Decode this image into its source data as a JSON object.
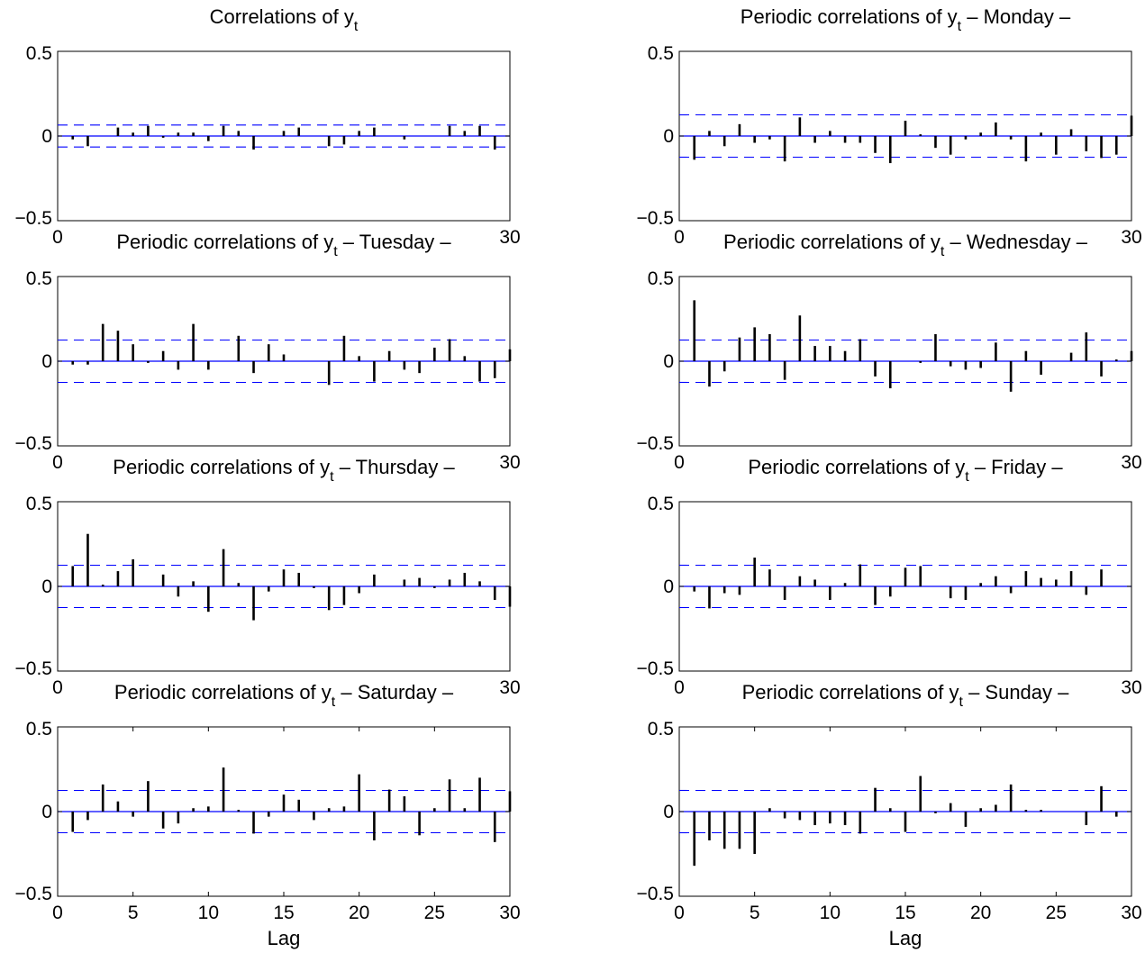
{
  "chart_data": [
    {
      "type": "bar",
      "title": "Correlations of y",
      "title_sub": "t",
      "title_suffix": "",
      "xlabel": "",
      "ylabel": "",
      "xlim": [
        0,
        30
      ],
      "ylim": [
        -0.5,
        0.5
      ],
      "xticks": [
        0,
        30
      ],
      "xtick_labels": [
        "0",
        "30"
      ],
      "yticks": [
        -0.5,
        0,
        0.5
      ],
      "ytick_labels": [
        "−0.5",
        "0",
        "0.5"
      ],
      "confidence_band": 0.065,
      "lags": [
        1,
        2,
        3,
        4,
        5,
        6,
        7,
        8,
        9,
        10,
        11,
        12,
        13,
        14,
        15,
        16,
        17,
        18,
        19,
        20,
        21,
        22,
        23,
        24,
        25,
        26,
        27,
        28,
        29,
        30
      ],
      "values": [
        -0.02,
        -0.06,
        0.0,
        0.05,
        0.02,
        0.06,
        -0.01,
        0.02,
        0.02,
        -0.03,
        0.06,
        0.03,
        -0.08,
        0.0,
        0.03,
        0.05,
        0.0,
        -0.06,
        -0.05,
        0.03,
        0.05,
        0.0,
        -0.02,
        0.0,
        0.0,
        0.06,
        0.03,
        0.06,
        -0.08,
        0.0
      ],
      "grid": false
    },
    {
      "type": "bar",
      "title": "Periodic correlations of y",
      "title_sub": "t",
      "title_suffix": " – Monday –",
      "xlabel": "",
      "ylabel": "",
      "xlim": [
        0,
        30
      ],
      "ylim": [
        -0.5,
        0.5
      ],
      "xticks": [
        0,
        30
      ],
      "xtick_labels": [
        "0",
        "30"
      ],
      "yticks": [
        -0.5,
        0,
        0.5
      ],
      "ytick_labels": [
        "−0.5",
        "0",
        "0.5"
      ],
      "confidence_band": 0.125,
      "lags": [
        1,
        2,
        3,
        4,
        5,
        6,
        7,
        8,
        9,
        10,
        11,
        12,
        13,
        14,
        15,
        16,
        17,
        18,
        19,
        20,
        21,
        22,
        23,
        24,
        25,
        26,
        27,
        28,
        29,
        30
      ],
      "values": [
        -0.14,
        0.03,
        -0.06,
        0.07,
        -0.04,
        -0.02,
        -0.15,
        0.11,
        -0.04,
        0.03,
        -0.04,
        -0.04,
        -0.1,
        -0.16,
        0.09,
        0.01,
        -0.07,
        -0.11,
        -0.02,
        0.02,
        0.08,
        -0.02,
        -0.15,
        0.02,
        -0.11,
        0.04,
        -0.09,
        -0.13,
        -0.11,
        0.12
      ],
      "grid": false
    },
    {
      "type": "bar",
      "title": "Periodic correlations of y",
      "title_sub": "t",
      "title_suffix": " – Tuesday –",
      "xlabel": "",
      "ylabel": "",
      "xlim": [
        0,
        30
      ],
      "ylim": [
        -0.5,
        0.5
      ],
      "xticks": [
        0,
        30
      ],
      "xtick_labels": [
        "0",
        "30"
      ],
      "yticks": [
        -0.5,
        0,
        0.5
      ],
      "ytick_labels": [
        "−0.5",
        "0",
        "0.5"
      ],
      "confidence_band": 0.125,
      "lags": [
        1,
        2,
        3,
        4,
        5,
        6,
        7,
        8,
        9,
        10,
        11,
        12,
        13,
        14,
        15,
        16,
        17,
        18,
        19,
        20,
        21,
        22,
        23,
        24,
        25,
        26,
        27,
        28,
        29,
        30
      ],
      "values": [
        -0.02,
        -0.02,
        0.22,
        0.18,
        0.1,
        -0.01,
        0.06,
        -0.05,
        0.22,
        -0.05,
        0.0,
        0.15,
        -0.07,
        0.1,
        0.04,
        0.0,
        0.0,
        -0.14,
        0.15,
        0.03,
        -0.12,
        0.06,
        -0.05,
        -0.07,
        0.08,
        0.13,
        0.03,
        -0.12,
        -0.1,
        0.07
      ],
      "grid": false
    },
    {
      "type": "bar",
      "title": "Periodic correlations of y",
      "title_sub": "t",
      "title_suffix": " – Wednesday –",
      "xlabel": "",
      "ylabel": "",
      "xlim": [
        0,
        30
      ],
      "ylim": [
        -0.5,
        0.5
      ],
      "xticks": [
        0,
        30
      ],
      "xtick_labels": [
        "0",
        "30"
      ],
      "yticks": [
        -0.5,
        0,
        0.5
      ],
      "ytick_labels": [
        "−0.5",
        "0",
        "0.5"
      ],
      "confidence_band": 0.125,
      "lags": [
        1,
        2,
        3,
        4,
        5,
        6,
        7,
        8,
        9,
        10,
        11,
        12,
        13,
        14,
        15,
        16,
        17,
        18,
        19,
        20,
        21,
        22,
        23,
        24,
        25,
        26,
        27,
        28,
        29,
        30
      ],
      "values": [
        0.36,
        -0.15,
        -0.06,
        0.14,
        0.2,
        0.16,
        -0.11,
        0.27,
        0.09,
        0.09,
        0.06,
        0.13,
        -0.09,
        -0.16,
        0.0,
        -0.01,
        0.16,
        -0.03,
        -0.05,
        -0.04,
        0.11,
        -0.18,
        0.06,
        -0.08,
        0.0,
        0.05,
        0.17,
        -0.09,
        0.01,
        0.06
      ],
      "grid": false
    },
    {
      "type": "bar",
      "title": "Periodic correlations of y",
      "title_sub": "t",
      "title_suffix": " – Thursday –",
      "xlabel": "",
      "ylabel": "",
      "xlim": [
        0,
        30
      ],
      "ylim": [
        -0.5,
        0.5
      ],
      "xticks": [
        0,
        30
      ],
      "xtick_labels": [
        "0",
        "30"
      ],
      "yticks": [
        -0.5,
        0,
        0.5
      ],
      "ytick_labels": [
        "−0.5",
        "0",
        "0.5"
      ],
      "confidence_band": 0.125,
      "lags": [
        1,
        2,
        3,
        4,
        5,
        6,
        7,
        8,
        9,
        10,
        11,
        12,
        13,
        14,
        15,
        16,
        17,
        18,
        19,
        20,
        21,
        22,
        23,
        24,
        25,
        26,
        27,
        28,
        29,
        30
      ],
      "values": [
        0.12,
        0.31,
        0.01,
        0.09,
        0.16,
        0.0,
        0.07,
        -0.06,
        0.03,
        -0.15,
        0.22,
        0.02,
        -0.2,
        -0.03,
        0.1,
        0.08,
        -0.01,
        -0.14,
        -0.11,
        -0.04,
        0.07,
        0.0,
        0.04,
        0.05,
        -0.01,
        0.04,
        0.08,
        0.03,
        -0.08,
        -0.12
      ],
      "grid": false
    },
    {
      "type": "bar",
      "title": "Periodic correlations of y",
      "title_sub": "t",
      "title_suffix": " – Friday –",
      "xlabel": "",
      "ylabel": "",
      "xlim": [
        0,
        30
      ],
      "ylim": [
        -0.5,
        0.5
      ],
      "xticks": [
        0,
        30
      ],
      "xtick_labels": [
        "0",
        "30"
      ],
      "yticks": [
        -0.5,
        0,
        0.5
      ],
      "ytick_labels": [
        "−0.5",
        "0",
        "0.5"
      ],
      "confidence_band": 0.125,
      "lags": [
        1,
        2,
        3,
        4,
        5,
        6,
        7,
        8,
        9,
        10,
        11,
        12,
        13,
        14,
        15,
        16,
        17,
        18,
        19,
        20,
        21,
        22,
        23,
        24,
        25,
        26,
        27,
        28,
        29,
        30
      ],
      "values": [
        -0.03,
        -0.13,
        -0.04,
        -0.05,
        0.17,
        0.1,
        -0.08,
        0.06,
        0.04,
        -0.08,
        0.02,
        0.13,
        -0.11,
        -0.06,
        0.11,
        0.12,
        0.0,
        -0.07,
        -0.08,
        0.02,
        0.06,
        -0.04,
        0.09,
        0.05,
        0.04,
        0.09,
        -0.05,
        0.1,
        0.0,
        0.0
      ],
      "grid": false
    },
    {
      "type": "bar",
      "title": "Periodic correlations of y",
      "title_sub": "t",
      "title_suffix": " – Saturday –",
      "xlabel": "Lag",
      "ylabel": "",
      "xlim": [
        0,
        30
      ],
      "ylim": [
        -0.5,
        0.5
      ],
      "xticks": [
        0,
        5,
        10,
        15,
        20,
        25,
        30
      ],
      "xtick_labels": [
        "0",
        "5",
        "10",
        "15",
        "20",
        "25",
        "30"
      ],
      "yticks": [
        -0.5,
        0,
        0.5
      ],
      "ytick_labels": [
        "−0.5",
        "0",
        "0.5"
      ],
      "confidence_band": 0.125,
      "lags": [
        1,
        2,
        3,
        4,
        5,
        6,
        7,
        8,
        9,
        10,
        11,
        12,
        13,
        14,
        15,
        16,
        17,
        18,
        19,
        20,
        21,
        22,
        23,
        24,
        25,
        26,
        27,
        28,
        29,
        30
      ],
      "values": [
        -0.12,
        -0.05,
        0.16,
        0.06,
        -0.03,
        0.18,
        -0.1,
        -0.07,
        0.02,
        0.03,
        0.26,
        0.01,
        -0.13,
        -0.03,
        0.1,
        0.07,
        -0.05,
        0.02,
        0.03,
        0.22,
        -0.17,
        0.13,
        0.09,
        -0.14,
        0.02,
        0.19,
        0.02,
        0.2,
        -0.18,
        0.12
      ],
      "grid": false
    },
    {
      "type": "bar",
      "title": "Periodic correlations of y",
      "title_sub": "t",
      "title_suffix": " – Sunday –",
      "xlabel": "Lag",
      "ylabel": "",
      "xlim": [
        0,
        30
      ],
      "ylim": [
        -0.5,
        0.5
      ],
      "xticks": [
        0,
        5,
        10,
        15,
        20,
        25,
        30
      ],
      "xtick_labels": [
        "0",
        "5",
        "10",
        "15",
        "20",
        "25",
        "30"
      ],
      "yticks": [
        -0.5,
        0,
        0.5
      ],
      "ytick_labels": [
        "−0.5",
        "0",
        "0.5"
      ],
      "confidence_band": 0.125,
      "lags": [
        1,
        2,
        3,
        4,
        5,
        6,
        7,
        8,
        9,
        10,
        11,
        12,
        13,
        14,
        15,
        16,
        17,
        18,
        19,
        20,
        21,
        22,
        23,
        24,
        25,
        26,
        27,
        28,
        29,
        30
      ],
      "values": [
        -0.32,
        -0.17,
        -0.22,
        -0.22,
        -0.25,
        0.02,
        -0.04,
        -0.05,
        -0.08,
        -0.07,
        -0.08,
        -0.13,
        0.14,
        0.02,
        -0.12,
        0.21,
        -0.01,
        0.05,
        -0.09,
        0.02,
        0.04,
        0.16,
        0.01,
        0.01,
        0.0,
        0.0,
        -0.08,
        0.15,
        -0.03,
        0.0
      ],
      "grid": false
    }
  ],
  "colors": {
    "stem": "#000000",
    "zero_line": "#0000ff",
    "confidence_band": "#0000ff",
    "axes": "#000000",
    "background": "#ffffff"
  }
}
